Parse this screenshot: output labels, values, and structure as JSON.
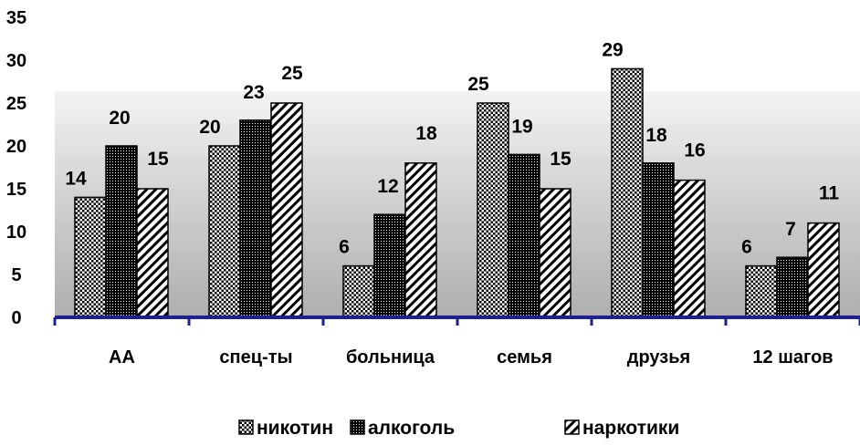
{
  "chart_data": {
    "type": "bar",
    "categories": [
      "АА",
      "спец-ты",
      "больница",
      "семья",
      "друзья",
      "12 шагов"
    ],
    "series": [
      {
        "name": "никотин",
        "values": [
          14,
          20,
          6,
          25,
          29,
          6
        ],
        "pattern": "checker"
      },
      {
        "name": "алкоголь",
        "values": [
          20,
          23,
          12,
          19,
          18,
          7
        ],
        "pattern": "dense-checker"
      },
      {
        "name": "наркотики",
        "values": [
          15,
          25,
          18,
          15,
          16,
          11
        ],
        "pattern": "diagonal"
      }
    ],
    "yticks": [
      "0",
      "5",
      "10",
      "15",
      "20",
      "25",
      "30",
      "35"
    ],
    "ylim": [
      0,
      35
    ],
    "grid": false,
    "legend_position": "bottom",
    "colors": {
      "axis": "#1f1f8f",
      "bar_dark": "#000000",
      "bar_light": "#ffffff"
    }
  }
}
